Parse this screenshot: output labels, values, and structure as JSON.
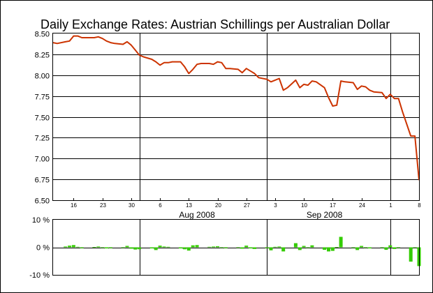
{
  "chart_data": [
    {
      "type": "line",
      "title": "Daily Exchange Rates: Austrian Schillings per Australian Dollar",
      "ylim": [
        6.5,
        8.5
      ],
      "xlim": [
        "2008-07-11",
        "2008-10-08"
      ],
      "yticks": [
        "6.50",
        "6.75",
        "7.00",
        "7.25",
        "7.50",
        "7.75",
        "8.00",
        "8.25",
        "8.50"
      ],
      "day_ticks": [
        {
          "date": "2008-07-16",
          "label": "16"
        },
        {
          "date": "2008-07-23",
          "label": "23"
        },
        {
          "date": "2008-07-30",
          "label": "30"
        },
        {
          "date": "2008-08-06",
          "label": "6"
        },
        {
          "date": "2008-08-13",
          "label": "13"
        },
        {
          "date": "2008-08-20",
          "label": "20"
        },
        {
          "date": "2008-08-27",
          "label": "27"
        },
        {
          "date": "2008-09-03",
          "label": "3"
        },
        {
          "date": "2008-09-10",
          "label": "10"
        },
        {
          "date": "2008-09-17",
          "label": "17"
        },
        {
          "date": "2008-09-24",
          "label": "24"
        },
        {
          "date": "2008-10-01",
          "label": "1"
        },
        {
          "date": "2008-10-08",
          "label": "8"
        }
      ],
      "month_lines": [
        "2008-08-01",
        "2008-09-01",
        "2008-10-01"
      ],
      "month_labels": [
        {
          "date": "2008-08-15",
          "label": "Aug 2008"
        },
        {
          "date": "2008-09-15",
          "label": "Sep 2008"
        }
      ],
      "line_color": "#cc3300",
      "grid": true,
      "series": [
        {
          "x": [
            "2008-07-11",
            "2008-07-12",
            "2008-07-14",
            "2008-07-15",
            "2008-07-16",
            "2008-07-17",
            "2008-07-18",
            "2008-07-19",
            "2008-07-21",
            "2008-07-22",
            "2008-07-23",
            "2008-07-24",
            "2008-07-25",
            "2008-07-26",
            "2008-07-28",
            "2008-07-29",
            "2008-07-30",
            "2008-07-31",
            "2008-08-01",
            "2008-08-02",
            "2008-08-04",
            "2008-08-05",
            "2008-08-06",
            "2008-08-07",
            "2008-08-08",
            "2008-08-09",
            "2008-08-11",
            "2008-08-12",
            "2008-08-13",
            "2008-08-14",
            "2008-08-15",
            "2008-08-16",
            "2008-08-18",
            "2008-08-19",
            "2008-08-20",
            "2008-08-21",
            "2008-08-22",
            "2008-08-23",
            "2008-08-25",
            "2008-08-26",
            "2008-08-27",
            "2008-08-28",
            "2008-08-29",
            "2008-08-30",
            "2008-09-01",
            "2008-09-02",
            "2008-09-03",
            "2008-09-04",
            "2008-09-05",
            "2008-09-06",
            "2008-09-08",
            "2008-09-09",
            "2008-09-10",
            "2008-09-11",
            "2008-09-12",
            "2008-09-13",
            "2008-09-15",
            "2008-09-16",
            "2008-09-17",
            "2008-09-18",
            "2008-09-19",
            "2008-09-20",
            "2008-09-22",
            "2008-09-23",
            "2008-09-24",
            "2008-09-25",
            "2008-09-26",
            "2008-09-27",
            "2008-09-29",
            "2008-09-30",
            "2008-10-01",
            "2008-10-02",
            "2008-10-03",
            "2008-10-04",
            "2008-10-06",
            "2008-10-07",
            "2008-10-08"
          ],
          "y": [
            8.39,
            8.38,
            8.4,
            8.41,
            8.47,
            8.47,
            8.45,
            8.45,
            8.45,
            8.46,
            8.44,
            8.41,
            8.39,
            8.38,
            8.37,
            8.4,
            8.36,
            8.3,
            8.24,
            8.22,
            8.19,
            8.16,
            8.12,
            8.15,
            8.15,
            8.16,
            8.16,
            8.1,
            8.02,
            8.07,
            8.13,
            8.14,
            8.14,
            8.13,
            8.16,
            8.15,
            8.08,
            8.08,
            8.07,
            8.03,
            8.08,
            8.05,
            8.02,
            7.97,
            7.95,
            7.92,
            7.94,
            7.96,
            7.82,
            7.85,
            7.94,
            7.85,
            7.89,
            7.88,
            7.93,
            7.92,
            7.85,
            7.73,
            7.63,
            7.64,
            7.93,
            7.92,
            7.91,
            7.83,
            7.87,
            7.86,
            7.82,
            7.8,
            7.79,
            7.72,
            7.77,
            7.72,
            7.72,
            7.56,
            7.27,
            7.27,
            6.74
          ]
        }
      ]
    },
    {
      "type": "bar",
      "ylim": [
        -10,
        10
      ],
      "yticks": [
        "-10 %",
        "0 %",
        "10 %"
      ],
      "bar_color": "#33cc00",
      "x": [
        "2008-07-14",
        "2008-07-15",
        "2008-07-16",
        "2008-07-17",
        "2008-07-18",
        "2008-07-21",
        "2008-07-22",
        "2008-07-23",
        "2008-07-24",
        "2008-07-25",
        "2008-07-28",
        "2008-07-29",
        "2008-07-30",
        "2008-07-31",
        "2008-08-01",
        "2008-08-04",
        "2008-08-05",
        "2008-08-06",
        "2008-08-07",
        "2008-08-08",
        "2008-08-11",
        "2008-08-12",
        "2008-08-13",
        "2008-08-14",
        "2008-08-15",
        "2008-08-18",
        "2008-08-19",
        "2008-08-20",
        "2008-08-21",
        "2008-08-22",
        "2008-08-25",
        "2008-08-26",
        "2008-08-27",
        "2008-08-28",
        "2008-08-29",
        "2008-09-01",
        "2008-09-02",
        "2008-09-03",
        "2008-09-04",
        "2008-09-05",
        "2008-09-08",
        "2008-09-09",
        "2008-09-10",
        "2008-09-11",
        "2008-09-12",
        "2008-09-15",
        "2008-09-16",
        "2008-09-17",
        "2008-09-18",
        "2008-09-19",
        "2008-09-22",
        "2008-09-23",
        "2008-09-24",
        "2008-09-25",
        "2008-09-26",
        "2008-09-29",
        "2008-09-30",
        "2008-10-01",
        "2008-10-02",
        "2008-10-03",
        "2008-10-06",
        "2008-10-07",
        "2008-10-08"
      ],
      "values": [
        0.3,
        0.6,
        0.8,
        0.2,
        -0.3,
        0.1,
        0.3,
        -0.2,
        -0.4,
        -0.3,
        -0.2,
        0.5,
        -0.5,
        -0.8,
        -0.7,
        -0.4,
        -1.0,
        0.6,
        0.3,
        0.2,
        -0.4,
        -0.7,
        -1.2,
        0.7,
        0.8,
        0.2,
        0.3,
        0.4,
        -0.1,
        -0.3,
        -0.1,
        -0.5,
        0.6,
        -0.4,
        -0.6,
        -0.3,
        -1.1,
        0.2,
        0.3,
        -1.5,
        1.5,
        -1.0,
        0.5,
        -0.1,
        0.7,
        -0.9,
        -1.5,
        -1.3,
        0.1,
        3.8,
        -0.1,
        -1.0,
        0.5,
        -0.1,
        -0.4,
        -0.1,
        -0.9,
        0.7,
        -0.6,
        0.0,
        -5.2,
        -0.1,
        -6.8
      ]
    }
  ]
}
